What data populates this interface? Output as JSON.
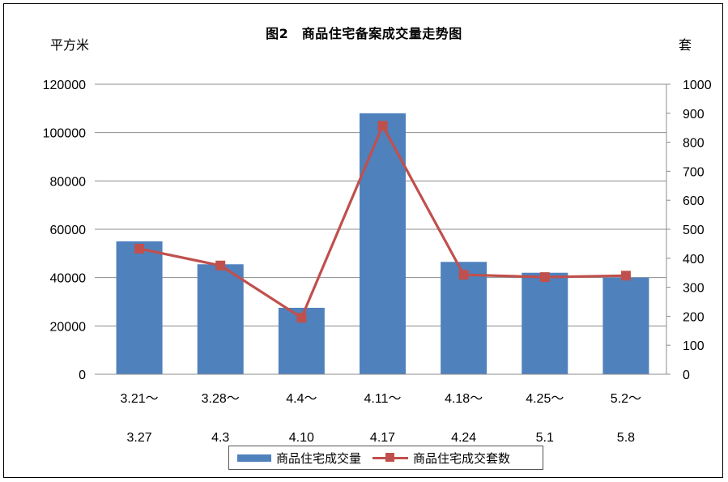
{
  "title": "图2　商品住宅备案成交量走势图",
  "left_unit": "平方米",
  "right_unit": "套",
  "chart_data": {
    "type": "bar",
    "title": "图2　商品住宅备案成交量走势图",
    "categories": [
      [
        "3.21～",
        "3.27"
      ],
      [
        "3.28～",
        "4.3"
      ],
      [
        "4.4～",
        "4.10"
      ],
      [
        "4.11～",
        "4.17"
      ],
      [
        "4.18～",
        "4.24"
      ],
      [
        "4.25～",
        "5.1"
      ],
      [
        "5.2～",
        "5.8"
      ]
    ],
    "y_left": {
      "label": "平方米",
      "range": [
        0,
        120000
      ],
      "ticks": [
        "0",
        "20000",
        "40000",
        "60000",
        "80000",
        "100000",
        "120000"
      ]
    },
    "y_right": {
      "label": "套",
      "range": [
        0,
        1000
      ],
      "ticks": [
        "0",
        "100",
        "200",
        "300",
        "400",
        "500",
        "600",
        "700",
        "800",
        "900",
        "1000"
      ]
    },
    "grid": true,
    "legend_position": "bottom",
    "series": [
      {
        "name": "商品住宅成交量",
        "type": "bar",
        "axis": "left",
        "color": "#4f81bd",
        "values": [
          55000,
          45500,
          27500,
          108000,
          46500,
          42000,
          40000
        ]
      },
      {
        "name": "商品住宅成交套数",
        "type": "line",
        "axis": "right",
        "color": "#c0504d",
        "marker": "square",
        "values": [
          433,
          375,
          195,
          857,
          343,
          335,
          340
        ]
      }
    ]
  }
}
